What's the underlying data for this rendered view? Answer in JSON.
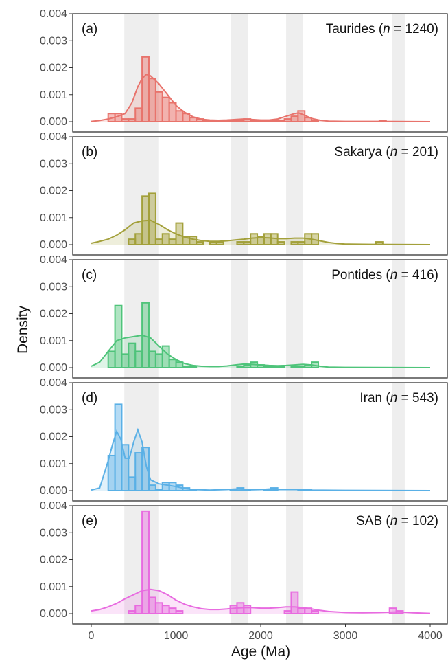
{
  "chart_data": {
    "type": "bar",
    "subtype": "histogram-with-density-curves",
    "xlabel": "Age (Ma)",
    "ylabel": "Density",
    "xlim": [
      0,
      4000
    ],
    "ylim": [
      0,
      0.004
    ],
    "x_ticks": [
      "0",
      "1000",
      "2000",
      "3000",
      "4000"
    ],
    "y_ticks": [
      "0.000",
      "0.001",
      "0.002",
      "0.003",
      "0.004"
    ],
    "bin_width": 80,
    "shaded_bands": [
      [
        390,
        800
      ],
      [
        1650,
        1850
      ],
      [
        2300,
        2500
      ],
      [
        3550,
        3700
      ]
    ],
    "grid": false,
    "panels": [
      {
        "tag": "(a)",
        "name": "Taurides",
        "n_prefix": "n",
        "n_value": "= 1240)",
        "color": "#E8736C",
        "bins": [
          [
            200,
            0.0003
          ],
          [
            280,
            0.0003
          ],
          [
            360,
            0.0001
          ],
          [
            440,
            0.0001
          ],
          [
            520,
            0.0005
          ],
          [
            600,
            0.0024
          ],
          [
            680,
            0.0016
          ],
          [
            760,
            0.0011
          ],
          [
            840,
            0.0009
          ],
          [
            920,
            0.0007
          ],
          [
            1000,
            0.0004
          ],
          [
            1080,
            0.0003
          ],
          [
            1160,
            0.00015
          ],
          [
            1240,
            0.0001
          ],
          [
            1320,
            5e-05
          ],
          [
            1400,
            3e-05
          ],
          [
            1480,
            2e-05
          ],
          [
            1560,
            5e-05
          ],
          [
            1640,
            5e-05
          ],
          [
            1720,
            5e-05
          ],
          [
            1800,
            0.0001
          ],
          [
            1880,
            5e-05
          ],
          [
            1960,
            3e-05
          ],
          [
            2040,
            3e-05
          ],
          [
            2120,
            5e-05
          ],
          [
            2200,
            5e-05
          ],
          [
            2280,
            0.0001
          ],
          [
            2360,
            0.0002
          ],
          [
            2440,
            0.0004
          ],
          [
            2520,
            0.00015
          ],
          [
            2600,
            5e-05
          ],
          [
            3400,
            3e-05
          ]
        ],
        "curve": [
          [
            0,
            1e-05
          ],
          [
            100,
            4e-05
          ],
          [
            200,
            0.0001
          ],
          [
            300,
            0.00018
          ],
          [
            400,
            0.0003
          ],
          [
            480,
            0.0007
          ],
          [
            550,
            0.0013
          ],
          [
            600,
            0.0016
          ],
          [
            650,
            0.00175
          ],
          [
            700,
            0.0017
          ],
          [
            800,
            0.0014
          ],
          [
            900,
            0.001
          ],
          [
            1000,
            0.0006
          ],
          [
            1100,
            0.00035
          ],
          [
            1200,
            0.00018
          ],
          [
            1300,
            9e-05
          ],
          [
            1400,
            6e-05
          ],
          [
            1500,
            5e-05
          ],
          [
            1600,
            6e-05
          ],
          [
            1700,
            8e-05
          ],
          [
            1800,
            0.0001
          ],
          [
            1900,
            8e-05
          ],
          [
            2000,
            6e-05
          ],
          [
            2100,
            6e-05
          ],
          [
            2200,
            0.0001
          ],
          [
            2300,
            0.0002
          ],
          [
            2400,
            0.0003
          ],
          [
            2450,
            0.00032
          ],
          [
            2500,
            0.00026
          ],
          [
            2600,
            0.00012
          ],
          [
            2700,
            5e-05
          ],
          [
            2800,
            2e-05
          ],
          [
            3000,
            1e-05
          ],
          [
            3400,
            1e-05
          ],
          [
            4000,
            0
          ]
        ]
      },
      {
        "tag": "(b)",
        "name": "Sakarya",
        "n_prefix": "n",
        "n_value": "= 201)",
        "color": "#A3A03A",
        "bins": [
          [
            440,
            0.0002
          ],
          [
            520,
            0.0004
          ],
          [
            600,
            0.0018
          ],
          [
            680,
            0.0019
          ],
          [
            760,
            0.0002
          ],
          [
            840,
            0.0004
          ],
          [
            920,
            0.0002
          ],
          [
            1000,
            0.0008
          ],
          [
            1080,
            0.0003
          ],
          [
            1160,
            0.0003
          ],
          [
            1240,
            0.0001
          ],
          [
            1400,
            0.0001
          ],
          [
            1480,
            0.0001
          ],
          [
            1720,
            0.0001
          ],
          [
            1800,
            0.0001
          ],
          [
            1880,
            0.0004
          ],
          [
            1960,
            0.0003
          ],
          [
            2040,
            0.0004
          ],
          [
            2120,
            0.0004
          ],
          [
            2200,
            0.0001
          ],
          [
            2360,
            0.0001
          ],
          [
            2440,
            0.0001
          ],
          [
            2520,
            0.0004
          ],
          [
            2600,
            0.0004
          ],
          [
            3360,
            0.0001
          ]
        ],
        "curve": [
          [
            0,
            5e-05
          ],
          [
            100,
            0.00012
          ],
          [
            200,
            0.0002
          ],
          [
            300,
            0.00035
          ],
          [
            400,
            0.00055
          ],
          [
            500,
            0.0008
          ],
          [
            600,
            0.00088
          ],
          [
            700,
            0.0009
          ],
          [
            800,
            0.00075
          ],
          [
            900,
            0.00055
          ],
          [
            1000,
            0.0004
          ],
          [
            1100,
            0.00028
          ],
          [
            1200,
            0.0002
          ],
          [
            1300,
            0.00015
          ],
          [
            1400,
            0.00012
          ],
          [
            1500,
            0.00012
          ],
          [
            1600,
            0.00014
          ],
          [
            1700,
            0.00017
          ],
          [
            1800,
            0.0002
          ],
          [
            1900,
            0.00024
          ],
          [
            2000,
            0.00026
          ],
          [
            2100,
            0.00025
          ],
          [
            2200,
            0.00022
          ],
          [
            2300,
            0.00022
          ],
          [
            2400,
            0.00024
          ],
          [
            2500,
            0.00024
          ],
          [
            2600,
            0.0002
          ],
          [
            2700,
            0.00014
          ],
          [
            2800,
            8e-05
          ],
          [
            2900,
            4e-05
          ],
          [
            3000,
            2e-05
          ],
          [
            3300,
            1e-05
          ],
          [
            4000,
            0
          ]
        ]
      },
      {
        "tag": "(c)",
        "name": "Pontides",
        "n_prefix": "n",
        "n_value": "= 416)",
        "color": "#4FC47A",
        "bins": [
          [
            200,
            0.0006
          ],
          [
            280,
            0.0023
          ],
          [
            360,
            0.0005
          ],
          [
            440,
            0.0009
          ],
          [
            520,
            0.0006
          ],
          [
            600,
            0.0024
          ],
          [
            680,
            0.0006
          ],
          [
            760,
            0.0005
          ],
          [
            840,
            0.0008
          ],
          [
            920,
            0.0003
          ],
          [
            1000,
            0.0002
          ],
          [
            1080,
            5e-05
          ],
          [
            1160,
            5e-05
          ],
          [
            1720,
            5e-05
          ],
          [
            1800,
            0.0001
          ],
          [
            1880,
            0.0002
          ],
          [
            1960,
            0.0001
          ],
          [
            2040,
            5e-05
          ],
          [
            2120,
            5e-05
          ],
          [
            2200,
            5e-05
          ],
          [
            2360,
            5e-05
          ],
          [
            2440,
            5e-05
          ],
          [
            2520,
            0.0001
          ],
          [
            2600,
            0.0002
          ]
        ],
        "curve": [
          [
            0,
            5e-05
          ],
          [
            100,
            0.0002
          ],
          [
            200,
            0.0006
          ],
          [
            300,
            0.001
          ],
          [
            400,
            0.0011
          ],
          [
            500,
            0.00115
          ],
          [
            600,
            0.0012
          ],
          [
            700,
            0.0011
          ],
          [
            800,
            0.0008
          ],
          [
            900,
            0.0005
          ],
          [
            1000,
            0.0003
          ],
          [
            1100,
            0.00015
          ],
          [
            1200,
            8e-05
          ],
          [
            1300,
            5e-05
          ],
          [
            1400,
            4e-05
          ],
          [
            1500,
            4e-05
          ],
          [
            1600,
            6e-05
          ],
          [
            1700,
            0.0001
          ],
          [
            1800,
            0.00013
          ],
          [
            1900,
            0.00012
          ],
          [
            2000,
            0.0001
          ],
          [
            2100,
            8e-05
          ],
          [
            2200,
            7e-05
          ],
          [
            2300,
            8e-05
          ],
          [
            2400,
            0.0001
          ],
          [
            2500,
            0.00012
          ],
          [
            2600,
            0.0001
          ],
          [
            2700,
            5e-05
          ],
          [
            2800,
            2e-05
          ],
          [
            3000,
            1e-05
          ],
          [
            4000,
            0
          ]
        ]
      },
      {
        "tag": "(d)",
        "name": "Iran",
        "n_prefix": "n",
        "n_value": "= 543)",
        "color": "#5AB0E6",
        "bins": [
          [
            200,
            0.0013
          ],
          [
            280,
            0.0032
          ],
          [
            360,
            0.0017
          ],
          [
            440,
            0.0005
          ],
          [
            520,
            0.0014
          ],
          [
            600,
            0.0016
          ],
          [
            680,
            0.0002
          ],
          [
            760,
            5e-05
          ],
          [
            840,
            0.0003
          ],
          [
            920,
            0.0003
          ],
          [
            1000,
            0.0002
          ],
          [
            1080,
            0.0001
          ],
          [
            1160,
            5e-05
          ],
          [
            1640,
            5e-05
          ],
          [
            1720,
            0.0001
          ],
          [
            1800,
            5e-05
          ],
          [
            2040,
            5e-05
          ],
          [
            2120,
            0.0001
          ],
          [
            2440,
            5e-05
          ],
          [
            2520,
            5e-05
          ]
        ],
        "curve": [
          [
            0,
            2e-05
          ],
          [
            100,
            0.0001
          ],
          [
            200,
            0.0011
          ],
          [
            250,
            0.0017
          ],
          [
            300,
            0.0022
          ],
          [
            350,
            0.0019
          ],
          [
            400,
            0.0012
          ],
          [
            450,
            0.0012
          ],
          [
            500,
            0.0018
          ],
          [
            550,
            0.00225
          ],
          [
            600,
            0.0018
          ],
          [
            650,
            0.0009
          ],
          [
            700,
            0.0004
          ],
          [
            800,
            0.00025
          ],
          [
            900,
            0.0002
          ],
          [
            1000,
            0.00015
          ],
          [
            1100,
            8e-05
          ],
          [
            1200,
            4e-05
          ],
          [
            1400,
            2e-05
          ],
          [
            1600,
            4e-05
          ],
          [
            1700,
            6e-05
          ],
          [
            1800,
            5e-05
          ],
          [
            1900,
            3e-05
          ],
          [
            2000,
            4e-05
          ],
          [
            2100,
            6e-05
          ],
          [
            2200,
            4e-05
          ],
          [
            2400,
            4e-05
          ],
          [
            2500,
            4e-05
          ],
          [
            2600,
            2e-05
          ],
          [
            3000,
            1e-05
          ],
          [
            4000,
            0
          ]
        ]
      },
      {
        "tag": "(e)",
        "name": "SAB",
        "n_prefix": "n",
        "n_value": "= 102)",
        "color": "#E86BE0",
        "bins": [
          [
            440,
            0.0001
          ],
          [
            520,
            0.0003
          ],
          [
            600,
            0.0038
          ],
          [
            680,
            0.0006
          ],
          [
            760,
            0.0004
          ],
          [
            840,
            0.0003
          ],
          [
            920,
            0.0002
          ],
          [
            1000,
            0.0001
          ],
          [
            1640,
            0.0003
          ],
          [
            1720,
            0.0004
          ],
          [
            1800,
            0.0003
          ],
          [
            2280,
            0.0001
          ],
          [
            2360,
            0.0008
          ],
          [
            2440,
            0.0002
          ],
          [
            2520,
            0.0002
          ],
          [
            2600,
            0.0001
          ],
          [
            3520,
            0.0002
          ],
          [
            3600,
            0.0001
          ]
        ],
        "curve": [
          [
            0,
            0.0001
          ],
          [
            100,
            0.00015
          ],
          [
            200,
            0.00025
          ],
          [
            300,
            0.00038
          ],
          [
            400,
            0.00055
          ],
          [
            500,
            0.0007
          ],
          [
            600,
            0.00085
          ],
          [
            700,
            0.0009
          ],
          [
            800,
            0.00085
          ],
          [
            900,
            0.0007
          ],
          [
            1000,
            0.0005
          ],
          [
            1100,
            0.00035
          ],
          [
            1200,
            0.00025
          ],
          [
            1300,
            0.00018
          ],
          [
            1400,
            0.00015
          ],
          [
            1500,
            0.00015
          ],
          [
            1600,
            0.00017
          ],
          [
            1700,
            0.0002
          ],
          [
            1800,
            0.00022
          ],
          [
            1900,
            0.00022
          ],
          [
            2000,
            0.0002
          ],
          [
            2100,
            0.0002
          ],
          [
            2200,
            0.00022
          ],
          [
            2300,
            0.00025
          ],
          [
            2400,
            0.00025
          ],
          [
            2500,
            0.00022
          ],
          [
            2600,
            0.00017
          ],
          [
            2700,
            0.00012
          ],
          [
            2800,
            8e-05
          ],
          [
            3000,
            4e-05
          ],
          [
            3200,
            3e-05
          ],
          [
            3400,
            4e-05
          ],
          [
            3600,
            6e-05
          ],
          [
            3700,
            5e-05
          ],
          [
            3800,
            3e-05
          ],
          [
            4000,
            1e-05
          ]
        ]
      }
    ]
  }
}
